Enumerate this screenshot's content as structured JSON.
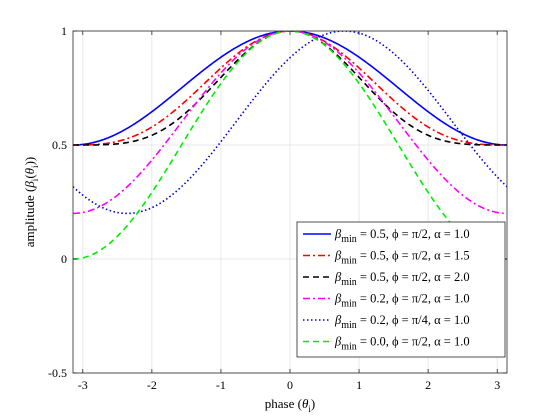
{
  "chart_data": {
    "type": "line",
    "xlabel": {
      "main": "phase (",
      "sym": "θ",
      "sub": "i",
      "close": ")"
    },
    "ylabel": {
      "main": "amplitude (",
      "sym1": "β",
      "sub1": "i",
      "paren": "(",
      "sym2": "θ",
      "sub2": "i",
      "close": "))"
    },
    "xlim": [
      -3.1416,
      3.1416
    ],
    "ylim": [
      -0.5,
      1.0
    ],
    "xticks": [
      -3,
      -2,
      -1,
      0,
      1,
      2,
      3
    ],
    "xtick_labels": [
      "-3",
      "-2",
      "-1",
      "0",
      "1",
      "2",
      "3"
    ],
    "yticks": [
      -0.5,
      0,
      0.5,
      1
    ],
    "ytick_labels": [
      "-0.5",
      "0",
      "0.5",
      "1"
    ],
    "grid": true,
    "legend_position": "bottom-right",
    "series": [
      {
        "name": "β_min = 0.5, φ = π/2, α = 1.0",
        "legend": {
          "beta": "β",
          "sub": "min",
          "rest": " = 0.5, ϕ = π/2, α = 1.0"
        },
        "beta_min": 0.5,
        "phi": 1.5708,
        "alpha": 1.0,
        "color": "#0000ff",
        "dash": "solid"
      },
      {
        "name": "β_min = 0.5, φ = π/2, α = 1.5",
        "legend": {
          "beta": "β",
          "sub": "min",
          "rest": " = 0.5, ϕ = π/2, α = 1.5"
        },
        "beta_min": 0.5,
        "phi": 1.5708,
        "alpha": 1.5,
        "color": "#ff0000",
        "dash": "dashdot"
      },
      {
        "name": "β_min = 0.5, φ = π/2, α = 2.0",
        "legend": {
          "beta": "β",
          "sub": "min",
          "rest": " = 0.5, ϕ = π/2, α = 2.0"
        },
        "beta_min": 0.5,
        "phi": 1.5708,
        "alpha": 2.0,
        "color": "#000000",
        "dash": "dashed"
      },
      {
        "name": "β_min = 0.2, φ = π/2, α = 1.0",
        "legend": {
          "beta": "β",
          "sub": "min",
          "rest": " = 0.2, ϕ = π/2, α = 1.0"
        },
        "beta_min": 0.2,
        "phi": 1.5708,
        "alpha": 1.0,
        "color": "#ff00ff",
        "dash": "dashdot"
      },
      {
        "name": "β_min = 0.2, φ = π/4, α = 1.0",
        "legend": {
          "beta": "β",
          "sub": "min",
          "rest": " = 0.2, ϕ = π/4, α = 1.0"
        },
        "beta_min": 0.2,
        "phi": 0.7854,
        "alpha": 1.0,
        "color": "#0000cc",
        "dash": "dotted"
      },
      {
        "name": "β_min = 0.0, φ = π/2, α = 1.0",
        "legend": {
          "beta": "β",
          "sub": "min",
          "rest": " = 0.0, ϕ = π/2, α = 1.0"
        },
        "beta_min": 0.0,
        "phi": 1.5708,
        "alpha": 1.0,
        "color": "#00ee00",
        "dash": "dashed"
      }
    ]
  }
}
